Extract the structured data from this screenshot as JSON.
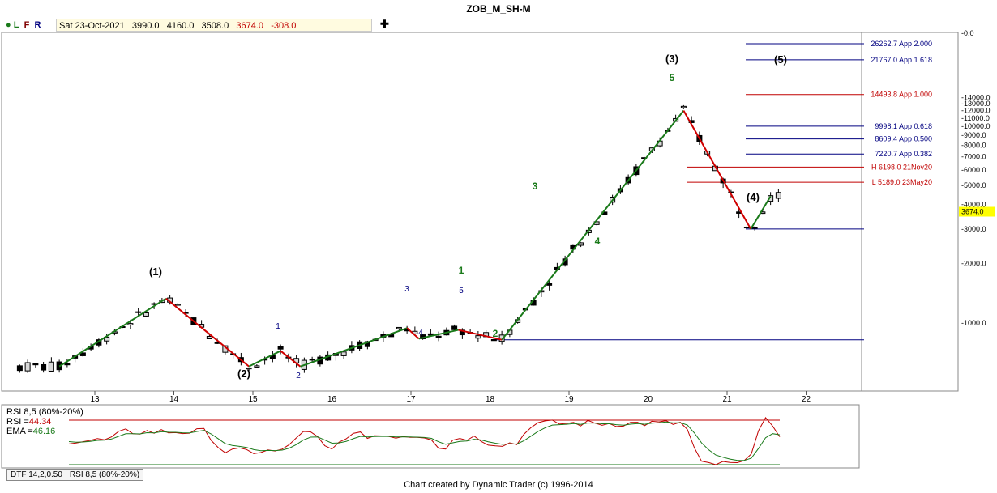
{
  "window": {
    "title": "ZOB_M_SH-M"
  },
  "infobar": {
    "flags": [
      "L",
      "F",
      "R"
    ],
    "date": "Sat 23-Oct-2021",
    "open": "3990.0",
    "high": "4160.0",
    "low": "3508.0",
    "close": "3674.0",
    "change": "-308.0"
  },
  "price_axis": {
    "ticks": [
      "14000.0",
      "13000.0",
      "12000.0",
      "11000.0",
      "10000.0",
      "9000.0",
      "8000.0",
      "7000.0",
      "6000.0",
      "5000.0",
      "4000.0",
      "3000.0",
      "2000.0",
      "1000.0"
    ],
    "top_tick": "0.0",
    "last_price": "3674.0",
    "last_price_color": "#ffff00"
  },
  "level_labels": [
    {
      "text": "26262.7 App 2.000",
      "color": "#000080"
    },
    {
      "text": "21767.0 App 1.618",
      "color": "#000080"
    },
    {
      "text": "14493.8 App 1.000",
      "color": "#c00000"
    },
    {
      "text": "9998.1 App 0.618",
      "color": "#000080"
    },
    {
      "text": "8609.4 App 0.500",
      "color": "#000080"
    },
    {
      "text": "7220.7 App 0.382",
      "color": "#000080"
    },
    {
      "text": "H 6198.0 21Nov20",
      "color": "#c00000"
    },
    {
      "text": "L 5189.0 23May20",
      "color": "#c00000"
    }
  ],
  "x_axis": {
    "ticks": [
      "13",
      "14",
      "15",
      "16",
      "17",
      "18",
      "19",
      "20",
      "21",
      "22"
    ]
  },
  "wave_labels": [
    {
      "text": "(1)",
      "color": "#000000"
    },
    {
      "text": "(2)",
      "color": "#000000"
    },
    {
      "text": "(3)",
      "color": "#000000"
    },
    {
      "text": "(4)",
      "color": "#000000"
    },
    {
      "text": "(5)",
      "color": "#000000"
    },
    {
      "text": "1",
      "color": "#000080"
    },
    {
      "text": "2",
      "color": "#000080"
    },
    {
      "text": "3",
      "color": "#000080"
    },
    {
      "text": "4",
      "color": "#000080"
    },
    {
      "text": "5",
      "color": "#000080"
    },
    {
      "text": "1",
      "color": "#1a7a1a"
    },
    {
      "text": "2",
      "color": "#1a7a1a"
    },
    {
      "text": "3",
      "color": "#1a7a1a"
    },
    {
      "text": "4",
      "color": "#1a7a1a"
    },
    {
      "text": "5",
      "color": "#1a7a1a"
    }
  ],
  "rsi": {
    "title": "RSI 8,5 (80%-20%)",
    "rsi_label": "RSI =",
    "rsi_value": "44.34",
    "ema_label": "EMA =",
    "ema_value": "46.16"
  },
  "tabs": [
    "DTF 14,2,0.50",
    "RSI 8,5 (80%-20%)"
  ],
  "footer": "Chart created by Dynamic Trader  (c) 1996-2014",
  "chart_data": {
    "type": "line",
    "x_label_type": "time index",
    "swings": [
      {
        "x": 12.55,
        "y": 600
      },
      {
        "x": 13.9,
        "y": 1330
      },
      {
        "x": 14.95,
        "y": 600
      },
      {
        "x": 15.35,
        "y": 720
      },
      {
        "x": 15.6,
        "y": 600
      },
      {
        "x": 16.95,
        "y": 940
      },
      {
        "x": 17.1,
        "y": 830
      },
      {
        "x": 17.6,
        "y": 920
      },
      {
        "x": 18.15,
        "y": 820
      },
      {
        "x": 20.45,
        "y": 12000
      },
      {
        "x": 21.3,
        "y": 3000
      },
      {
        "x": 21.55,
        "y": 4400
      }
    ],
    "colors": {
      "up": "#1a7a1a",
      "down": "#d00000"
    }
  }
}
